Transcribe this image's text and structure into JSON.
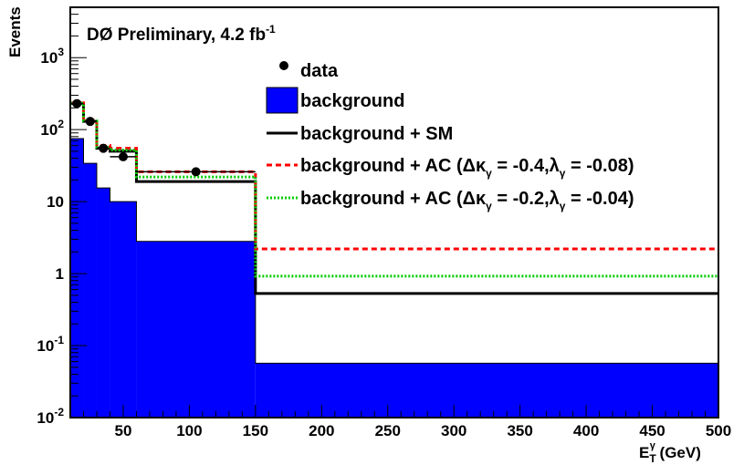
{
  "chart_data": {
    "type": "step-histogram",
    "title": "DØ Preliminary, 4.2 fb",
    "title_superscript": "-1",
    "xlabel": {
      "base": "E",
      "sub": "T",
      "sup": "γ",
      "unit": " (GeV)"
    },
    "ylabel": "Events",
    "x_scale": "linear",
    "y_scale": "log",
    "xlim": [
      10,
      500
    ],
    "ylim": [
      0.01,
      5000
    ],
    "x_ticks": [
      50,
      100,
      150,
      200,
      250,
      300,
      350,
      400,
      450,
      500
    ],
    "y_ticks": [
      {
        "value": 0.01,
        "base": "10",
        "exp": "-2"
      },
      {
        "value": 0.1,
        "base": "10",
        "exp": "-1"
      },
      {
        "value": 1,
        "base": "1",
        "exp": ""
      },
      {
        "value": 10,
        "base": "10",
        "exp": ""
      },
      {
        "value": 100,
        "base": "10",
        "exp": "2"
      },
      {
        "value": 1000,
        "base": "10",
        "exp": "3"
      }
    ],
    "bin_edges": [
      10,
      20,
      30,
      40,
      60,
      150,
      500
    ],
    "legend_position": "top-right",
    "series": [
      {
        "key": "bkg",
        "label": "background",
        "kind": "filled",
        "color": "#0000ff",
        "values": [
          75,
          34,
          15.5,
          10,
          2.8,
          0.057
        ]
      },
      {
        "key": "sm",
        "label": "background + SM",
        "kind": "line",
        "color": "#000000",
        "dash": "",
        "values": [
          230,
          130,
          55,
          50,
          19,
          0.53
        ]
      },
      {
        "key": "ac1",
        "label": "background + AC (Δκ",
        "label_sub": "γ",
        "label_rest": " = -0.4,λ",
        "label_sub2": "γ",
        "label_end": " = -0.08)",
        "kind": "line",
        "color": "#ff0000",
        "dash": "6,4",
        "values": [
          235,
          134,
          60,
          55,
          26,
          2.2
        ]
      },
      {
        "key": "ac2",
        "label": "background + AC (Δκ",
        "label_sub": "γ",
        "label_rest": " = -0.2,λ",
        "label_sub2": "γ",
        "label_end": " = -0.04)",
        "kind": "line",
        "color": "#00cc00",
        "dash": "2,2",
        "values": [
          232,
          132,
          57,
          52,
          22,
          0.92
        ]
      }
    ],
    "data_points": {
      "label": "data",
      "x": [
        15,
        25,
        35,
        50,
        105
      ],
      "y": [
        230,
        130,
        55,
        42,
        26
      ],
      "x_err": [
        5,
        5,
        5,
        10,
        45
      ]
    }
  }
}
